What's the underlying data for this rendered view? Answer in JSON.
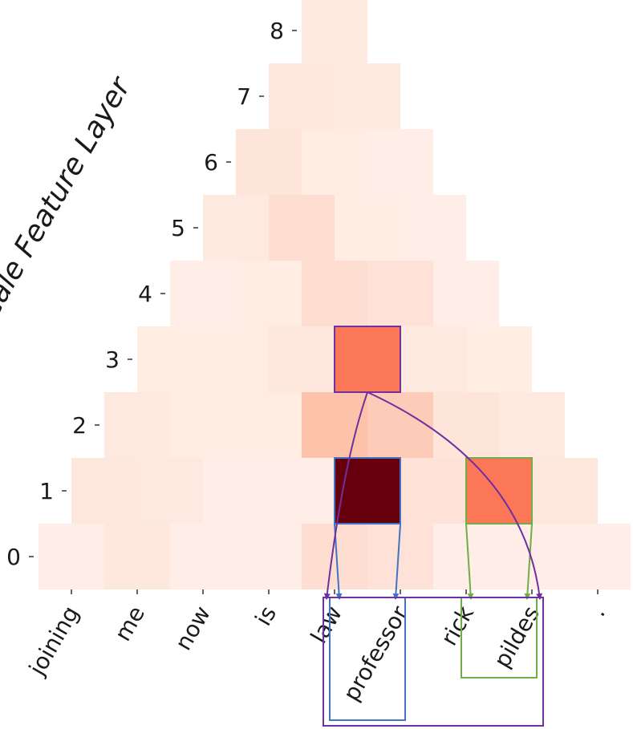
{
  "chart_data": {
    "type": "heatmap",
    "title": "",
    "xlabel": "",
    "ylabel": "Multi-Scale Feature Layer",
    "x_tokens": [
      "joining",
      "me",
      "now",
      "is",
      "law",
      "professor",
      "rick",
      "pildes",
      "."
    ],
    "y_layers": [
      "0",
      "1",
      "2",
      "3",
      "4",
      "5",
      "6",
      "7",
      "8"
    ],
    "value_range": [
      0,
      1
    ],
    "colormap": [
      "#fff5f0",
      "#fcbba1",
      "#fb6a4a",
      "#cb181d",
      "#67000d"
    ],
    "cells": [
      {
        "layer": 0,
        "values": [
          0.03,
          0.06,
          0.03,
          0.03,
          0.1,
          0.08,
          0.03,
          0.03,
          0.03
        ]
      },
      {
        "layer": 1,
        "values": [
          0.06,
          0.05,
          0.03,
          0.03,
          1.0,
          0.08,
          0.46,
          0.06
        ]
      },
      {
        "layer": 2,
        "values": [
          0.05,
          0.04,
          0.04,
          0.22,
          0.18,
          0.07,
          0.05
        ]
      },
      {
        "layer": 3,
        "values": [
          0.04,
          0.04,
          0.06,
          0.46,
          0.05,
          0.04
        ]
      },
      {
        "layer": 4,
        "values": [
          0.03,
          0.04,
          0.1,
          0.08,
          0.03
        ]
      },
      {
        "layer": 5,
        "values": [
          0.05,
          0.1,
          0.04,
          0.03
        ]
      },
      {
        "layer": 6,
        "values": [
          0.07,
          0.04,
          0.03
        ]
      },
      {
        "layer": 7,
        "values": [
          0.06,
          0.05
        ]
      },
      {
        "layer": 8,
        "values": [
          0.05
        ]
      }
    ],
    "annotations": [
      {
        "layer": 1,
        "cell": 4,
        "color": "#4472c4",
        "spans_tokens": [
          4,
          5
        ]
      },
      {
        "layer": 1,
        "cell": 6,
        "color": "#70ad47",
        "spans_tokens": [
          6,
          7
        ]
      },
      {
        "layer": 3,
        "cell": 3,
        "color": "#7030a0",
        "spans_tokens": [
          4,
          7
        ]
      }
    ]
  }
}
